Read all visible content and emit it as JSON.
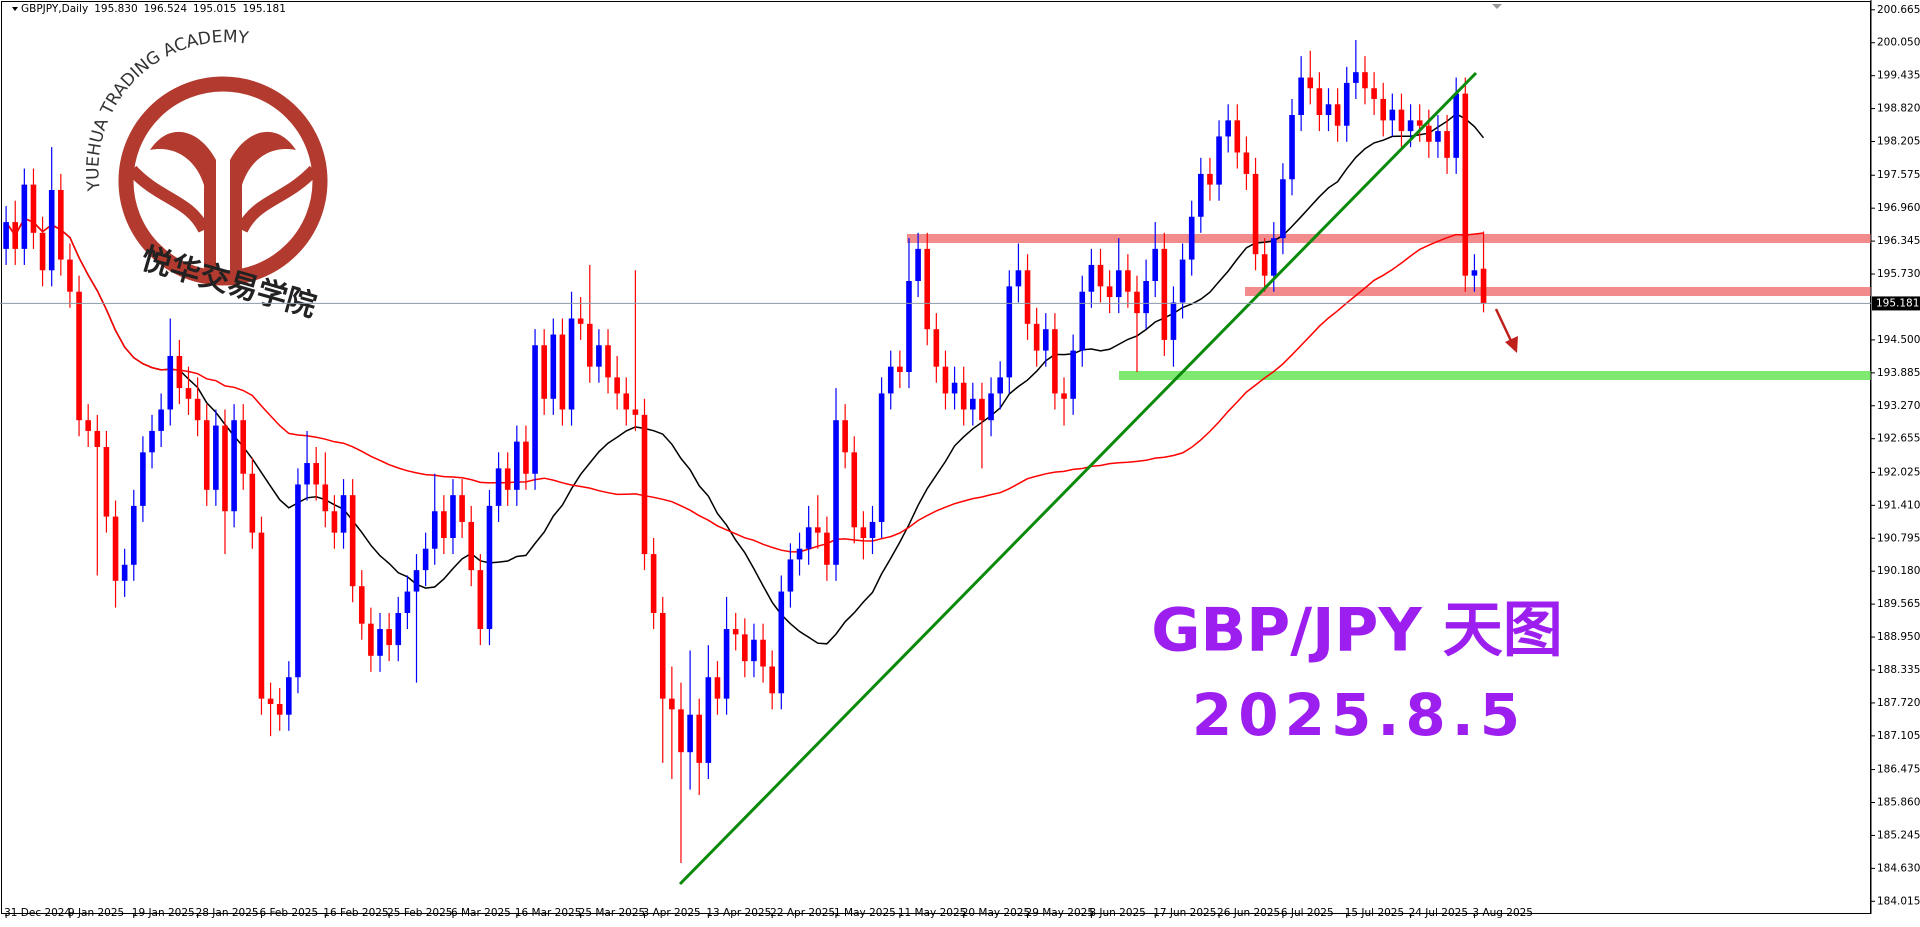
{
  "chart_data": {
    "type": "candlestick",
    "header": "GBPJPY,Daily",
    "header_values": [
      "195.830",
      "196.524",
      "195.015",
      "195.181"
    ],
    "brand": "YUEHUA TRADING ACADEMY",
    "brand_cn": "悦华交易学院",
    "title": "GBP/JPY 天图",
    "subtitle": "2025.8.5",
    "up_color": "#0000ff",
    "down_color": "#ff0000",
    "last_price": 195.181,
    "ylim": [
      184.015,
      200.665
    ],
    "yticks": [
      200.665,
      {
        "value": 200.05,
        "label": "200.050"
      },
      199.435,
      {
        "value": 198.82,
        "label": "198.820"
      },
      198.205,
      197.575,
      {
        "value": 196.96,
        "label": "196.960"
      },
      196.345,
      {
        "value": 195.73,
        "label": "195.730"
      },
      {
        "value": 194.5,
        "label": "194.500"
      },
      193.885,
      {
        "value": 193.27,
        "label": "193.270"
      },
      192.655,
      192.025,
      {
        "value": 191.41,
        "label": "191.410"
      },
      190.795,
      {
        "value": 190.18,
        "label": "190.180"
      },
      189.565,
      {
        "value": 188.95,
        "label": "188.950"
      },
      188.335,
      {
        "value": 187.72,
        "label": "187.720"
      },
      187.105,
      186.475,
      {
        "value": 185.86,
        "label": "185.860"
      },
      185.245,
      {
        "value": 184.63,
        "label": "184.630"
      },
      184.015
    ],
    "categories": [
      "31 Dec 2024",
      null,
      null,
      null,
      null,
      null,
      null,
      "9 Jan 2025",
      null,
      null,
      null,
      null,
      null,
      null,
      "19 Jan 2025",
      null,
      null,
      null,
      null,
      null,
      null,
      "28 Jan 2025",
      null,
      null,
      null,
      null,
      null,
      null,
      "6 Feb 2025",
      null,
      null,
      null,
      null,
      null,
      null,
      "16 Feb 2025",
      null,
      null,
      null,
      null,
      null,
      null,
      "25 Feb 2025",
      null,
      null,
      null,
      null,
      null,
      null,
      "6 Mar 2025",
      null,
      null,
      null,
      null,
      null,
      null,
      "16 Mar 2025",
      null,
      null,
      null,
      null,
      null,
      null,
      "25 Mar 2025",
      null,
      null,
      null,
      null,
      null,
      null,
      "3 Apr 2025",
      null,
      null,
      null,
      null,
      null,
      null,
      "13 Apr 2025",
      null,
      null,
      null,
      null,
      null,
      null,
      "22 Apr 2025",
      null,
      null,
      null,
      null,
      null,
      null,
      "1 May 2025",
      null,
      null,
      null,
      null,
      null,
      null,
      "11 May 2025",
      null,
      null,
      null,
      null,
      null,
      null,
      "20 May 2025",
      null,
      null,
      null,
      null,
      null,
      null,
      "29 May 2025",
      null,
      null,
      null,
      null,
      null,
      null,
      "8 Jun 2025",
      null,
      null,
      null,
      null,
      null,
      null,
      "17 Jun 2025",
      null,
      null,
      null,
      null,
      null,
      null,
      "26 Jun 2025",
      null,
      null,
      null,
      null,
      null,
      null,
      "6 Jul 2025",
      null,
      null,
      null,
      null,
      null,
      null,
      "15 Jul 2025",
      null,
      null,
      null,
      null,
      null,
      null,
      "24 Jul 2025",
      null,
      null,
      null,
      null,
      null,
      null,
      "3 Aug 2025",
      null
    ],
    "ohlc": [
      [
        196.2,
        197.0,
        195.9,
        196.7
      ],
      [
        196.7,
        197.1,
        195.9,
        196.2
      ],
      [
        196.2,
        197.7,
        195.9,
        197.4
      ],
      [
        197.4,
        197.7,
        196.2,
        196.5
      ],
      [
        196.5,
        196.8,
        195.5,
        195.8
      ],
      [
        195.8,
        198.1,
        195.5,
        197.3
      ],
      [
        197.3,
        197.6,
        195.7,
        196.0
      ],
      [
        196.0,
        196.3,
        195.1,
        195.4
      ],
      [
        195.4,
        195.7,
        192.7,
        193.0
      ],
      [
        193.0,
        193.3,
        192.5,
        192.8
      ],
      [
        192.8,
        193.1,
        190.1,
        192.5
      ],
      [
        192.5,
        192.8,
        190.9,
        191.2
      ],
      [
        191.2,
        191.5,
        189.5,
        190.0
      ],
      [
        190.0,
        190.6,
        189.7,
        190.3
      ],
      [
        190.3,
        191.7,
        190.0,
        191.4
      ],
      [
        191.4,
        192.7,
        191.1,
        192.4
      ],
      [
        192.4,
        193.1,
        192.1,
        192.8
      ],
      [
        192.8,
        193.5,
        192.5,
        193.2
      ],
      [
        193.2,
        194.9,
        192.9,
        194.2
      ],
      [
        194.2,
        194.5,
        193.3,
        193.6
      ],
      [
        193.6,
        194.0,
        193.1,
        193.4
      ],
      [
        193.4,
        193.8,
        192.7,
        193.0
      ],
      [
        193.0,
        193.3,
        191.4,
        191.7
      ],
      [
        191.7,
        193.2,
        191.4,
        192.9
      ],
      [
        192.9,
        193.2,
        190.5,
        191.3
      ],
      [
        191.3,
        193.3,
        191.0,
        193.0
      ],
      [
        193.0,
        193.3,
        191.7,
        192.0
      ],
      [
        192.0,
        192.3,
        190.6,
        190.9
      ],
      [
        190.9,
        191.2,
        187.5,
        187.8
      ],
      [
        187.8,
        188.1,
        187.1,
        187.7
      ],
      [
        187.7,
        188.0,
        187.2,
        187.5
      ],
      [
        187.5,
        188.5,
        187.2,
        188.2
      ],
      [
        188.2,
        192.1,
        187.9,
        191.8
      ],
      [
        191.8,
        192.8,
        191.5,
        192.2
      ],
      [
        192.2,
        192.5,
        191.5,
        191.8
      ],
      [
        191.8,
        192.4,
        191.0,
        191.3
      ],
      [
        191.3,
        191.6,
        190.6,
        190.9
      ],
      [
        190.9,
        191.9,
        190.6,
        191.6
      ],
      [
        191.6,
        191.9,
        189.6,
        189.9
      ],
      [
        189.9,
        190.2,
        188.9,
        189.2
      ],
      [
        189.2,
        189.5,
        188.3,
        188.6
      ],
      [
        188.6,
        189.4,
        188.3,
        189.1
      ],
      [
        189.1,
        189.4,
        188.5,
        188.8
      ],
      [
        188.8,
        189.7,
        188.5,
        189.4
      ],
      [
        189.4,
        190.1,
        189.1,
        189.8
      ],
      [
        189.8,
        190.5,
        188.1,
        190.2
      ],
      [
        190.2,
        190.9,
        189.9,
        190.6
      ],
      [
        190.6,
        192.0,
        190.3,
        191.3
      ],
      [
        191.3,
        191.6,
        190.5,
        190.8
      ],
      [
        190.8,
        191.9,
        190.5,
        191.6
      ],
      [
        191.6,
        191.9,
        190.8,
        191.1
      ],
      [
        191.1,
        191.4,
        189.9,
        190.2
      ],
      [
        190.2,
        190.5,
        188.8,
        189.1
      ],
      [
        189.1,
        191.7,
        188.8,
        191.4
      ],
      [
        191.4,
        192.4,
        191.1,
        192.1
      ],
      [
        192.1,
        192.4,
        191.4,
        191.7
      ],
      [
        191.7,
        192.9,
        191.4,
        192.6
      ],
      [
        192.6,
        192.9,
        191.7,
        192.0
      ],
      [
        192.0,
        194.7,
        191.7,
        194.4
      ],
      [
        194.4,
        194.7,
        193.1,
        193.4
      ],
      [
        193.4,
        194.9,
        193.1,
        194.6
      ],
      [
        194.6,
        194.9,
        192.9,
        193.2
      ],
      [
        193.2,
        195.4,
        192.9,
        194.9
      ],
      [
        194.9,
        195.3,
        194.5,
        194.8
      ],
      [
        194.8,
        195.9,
        193.7,
        194.0
      ],
      [
        194.0,
        194.7,
        193.7,
        194.4
      ],
      [
        194.4,
        194.7,
        193.5,
        193.8
      ],
      [
        193.8,
        194.2,
        193.2,
        193.5
      ],
      [
        193.5,
        193.8,
        192.9,
        193.2
      ],
      [
        193.2,
        195.8,
        192.8,
        193.1
      ],
      [
        193.1,
        193.4,
        190.2,
        190.5
      ],
      [
        190.5,
        190.8,
        189.1,
        189.4
      ],
      [
        189.4,
        189.7,
        186.6,
        187.8
      ],
      [
        187.8,
        188.4,
        186.3,
        187.6
      ],
      [
        187.6,
        188.1,
        184.73,
        186.8
      ],
      [
        186.8,
        188.7,
        186.1,
        187.5
      ],
      [
        187.5,
        187.8,
        186.0,
        186.6
      ],
      [
        186.6,
        188.8,
        186.3,
        188.2
      ],
      [
        188.2,
        188.5,
        187.5,
        187.8
      ],
      [
        187.8,
        189.7,
        187.5,
        189.1
      ],
      [
        189.1,
        189.4,
        188.7,
        189.0
      ],
      [
        189.0,
        189.3,
        188.2,
        188.5
      ],
      [
        188.5,
        189.2,
        188.2,
        188.9
      ],
      [
        188.9,
        189.2,
        188.1,
        188.4
      ],
      [
        188.4,
        188.7,
        187.6,
        187.9
      ],
      [
        187.9,
        190.1,
        187.6,
        189.8
      ],
      [
        189.8,
        190.7,
        189.5,
        190.4
      ],
      [
        190.4,
        190.9,
        190.1,
        190.6
      ],
      [
        190.6,
        191.4,
        190.3,
        191.0
      ],
      [
        191.0,
        191.6,
        190.6,
        190.9
      ],
      [
        190.9,
        191.2,
        190.0,
        190.3
      ],
      [
        190.3,
        193.6,
        190.0,
        193.0
      ],
      [
        193.0,
        193.3,
        192.1,
        192.4
      ],
      [
        192.4,
        192.7,
        190.7,
        191.0
      ],
      [
        191.0,
        191.3,
        190.4,
        190.8
      ],
      [
        190.8,
        191.4,
        190.5,
        191.1
      ],
      [
        191.1,
        193.8,
        190.8,
        193.5
      ],
      [
        193.5,
        194.3,
        193.2,
        194.0
      ],
      [
        194.0,
        194.3,
        193.6,
        193.9
      ],
      [
        193.9,
        196.4,
        193.6,
        195.6
      ],
      [
        195.6,
        196.5,
        195.3,
        196.2
      ],
      [
        196.2,
        196.5,
        194.4,
        194.7
      ],
      [
        194.7,
        195.0,
        193.7,
        194.0
      ],
      [
        194.0,
        194.3,
        193.2,
        193.5
      ],
      [
        193.5,
        194.0,
        193.2,
        193.7
      ],
      [
        193.7,
        194.0,
        192.9,
        193.2
      ],
      [
        193.2,
        193.7,
        192.9,
        193.4
      ],
      [
        193.4,
        193.7,
        192.1,
        193.0
      ],
      [
        193.0,
        193.8,
        192.7,
        193.5
      ],
      [
        193.5,
        194.1,
        193.2,
        193.8
      ],
      [
        193.8,
        195.8,
        193.5,
        195.5
      ],
      [
        195.5,
        196.3,
        195.2,
        195.8
      ],
      [
        195.8,
        196.1,
        194.5,
        194.8
      ],
      [
        194.8,
        195.1,
        194.0,
        194.3
      ],
      [
        194.3,
        195.0,
        194.0,
        194.7
      ],
      [
        194.7,
        195.0,
        193.2,
        193.5
      ],
      [
        193.5,
        193.8,
        192.9,
        193.4
      ],
      [
        193.4,
        194.6,
        193.1,
        194.3
      ],
      [
        194.3,
        195.7,
        194.0,
        195.4
      ],
      [
        195.4,
        196.2,
        195.1,
        195.9
      ],
      [
        195.9,
        196.2,
        195.2,
        195.5
      ],
      [
        195.5,
        195.8,
        195.0,
        195.3
      ],
      [
        195.3,
        196.4,
        195.0,
        195.8
      ],
      [
        195.8,
        196.1,
        195.1,
        195.4
      ],
      [
        195.4,
        195.7,
        193.9,
        195.0
      ],
      [
        195.0,
        196.0,
        194.7,
        195.6
      ],
      [
        195.6,
        196.7,
        195.3,
        196.2
      ],
      [
        196.2,
        196.5,
        194.2,
        194.5
      ],
      [
        194.5,
        195.5,
        194.0,
        195.2
      ],
      [
        195.2,
        196.3,
        194.9,
        196.0
      ],
      [
        196.0,
        197.1,
        195.7,
        196.8
      ],
      [
        196.8,
        197.9,
        196.5,
        197.6
      ],
      [
        197.6,
        197.9,
        197.1,
        197.4
      ],
      [
        197.4,
        198.6,
        197.1,
        198.3
      ],
      [
        198.3,
        198.9,
        198.0,
        198.6
      ],
      [
        198.6,
        198.9,
        197.7,
        198.0
      ],
      [
        198.0,
        198.3,
        197.3,
        197.6
      ],
      [
        197.6,
        197.9,
        195.8,
        196.1
      ],
      [
        196.1,
        196.4,
        195.4,
        195.7
      ],
      [
        195.7,
        196.7,
        195.4,
        196.4
      ],
      [
        196.4,
        197.8,
        196.1,
        197.5
      ],
      [
        197.5,
        199.0,
        197.2,
        198.7
      ],
      [
        198.7,
        199.8,
        198.4,
        199.4
      ],
      [
        199.4,
        199.9,
        198.9,
        199.2
      ],
      [
        199.2,
        199.5,
        198.4,
        198.7
      ],
      [
        198.7,
        199.2,
        198.4,
        198.9
      ],
      [
        198.9,
        199.2,
        198.2,
        198.5
      ],
      [
        198.5,
        199.6,
        198.2,
        199.3
      ],
      [
        199.3,
        200.1,
        199.0,
        199.5
      ],
      [
        199.5,
        199.8,
        198.9,
        199.2
      ],
      [
        199.2,
        199.5,
        198.7,
        199.0
      ],
      [
        199.0,
        199.3,
        198.3,
        198.6
      ],
      [
        198.6,
        199.1,
        198.3,
        198.8
      ],
      [
        198.8,
        199.1,
        198.1,
        198.4
      ],
      [
        198.4,
        198.9,
        198.1,
        198.6
      ],
      [
        198.6,
        198.9,
        198.2,
        198.5
      ],
      [
        198.5,
        198.8,
        197.9,
        198.2
      ],
      [
        198.2,
        198.7,
        197.9,
        198.4
      ],
      [
        198.4,
        198.7,
        197.6,
        197.9
      ],
      [
        197.9,
        199.4,
        197.6,
        199.1
      ],
      [
        199.1,
        199.4,
        195.4,
        195.7
      ],
      [
        195.7,
        196.1,
        195.4,
        195.8
      ],
      [
        195.83,
        196.524,
        195.015,
        195.181
      ]
    ]
  }
}
